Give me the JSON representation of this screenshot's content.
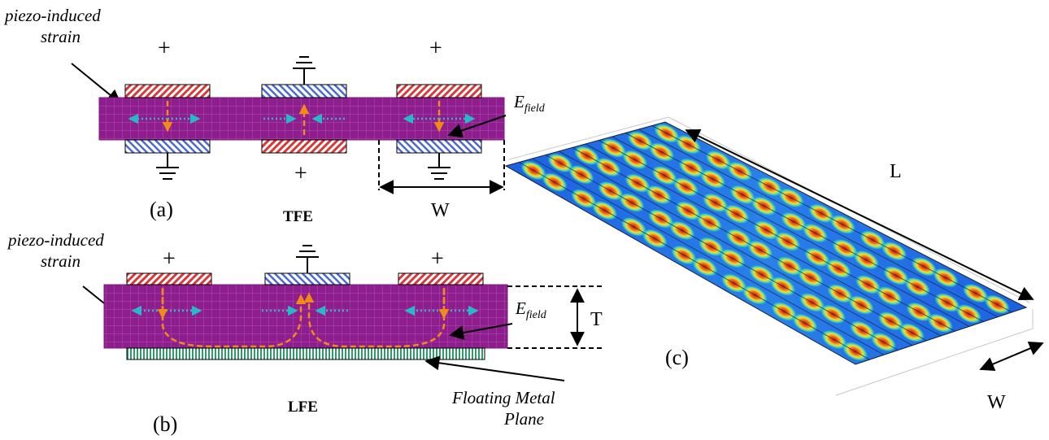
{
  "panel_a": {
    "strain_label_line1": "piezo-induced",
    "strain_label_line2": "strain",
    "plus_symbol": "+",
    "efield_main": "E",
    "efield_sub": "field",
    "panel_label": "(a)",
    "mode_label": "TFE",
    "width_label": "W"
  },
  "panel_b": {
    "strain_label_line1": "piezo-induced",
    "strain_label_line2": "strain",
    "plus_symbol": "+",
    "efield_main": "E",
    "efield_sub": "field",
    "thickness_label": "T",
    "mode_label": "LFE",
    "floating_label_line1": "Floating Metal",
    "floating_label_line2": "Plane",
    "panel_label": "(b)"
  },
  "panel_c": {
    "panel_label": "(c)",
    "length_label": "L",
    "width_label": "W"
  },
  "colors": {
    "substrate": "#8e1e8e",
    "substrate_grid": "#b04cb0",
    "positive_electrode": "#d83838",
    "ground_electrode": "#4a6ad0",
    "floating_plane": "#2e9a6a",
    "strain_arrow": "#2ab8c6",
    "efield_arrow": "#f28a16",
    "mode_low": "#1450d8",
    "mode_mid": "#20d0c0",
    "mode_high": "#e01818"
  }
}
